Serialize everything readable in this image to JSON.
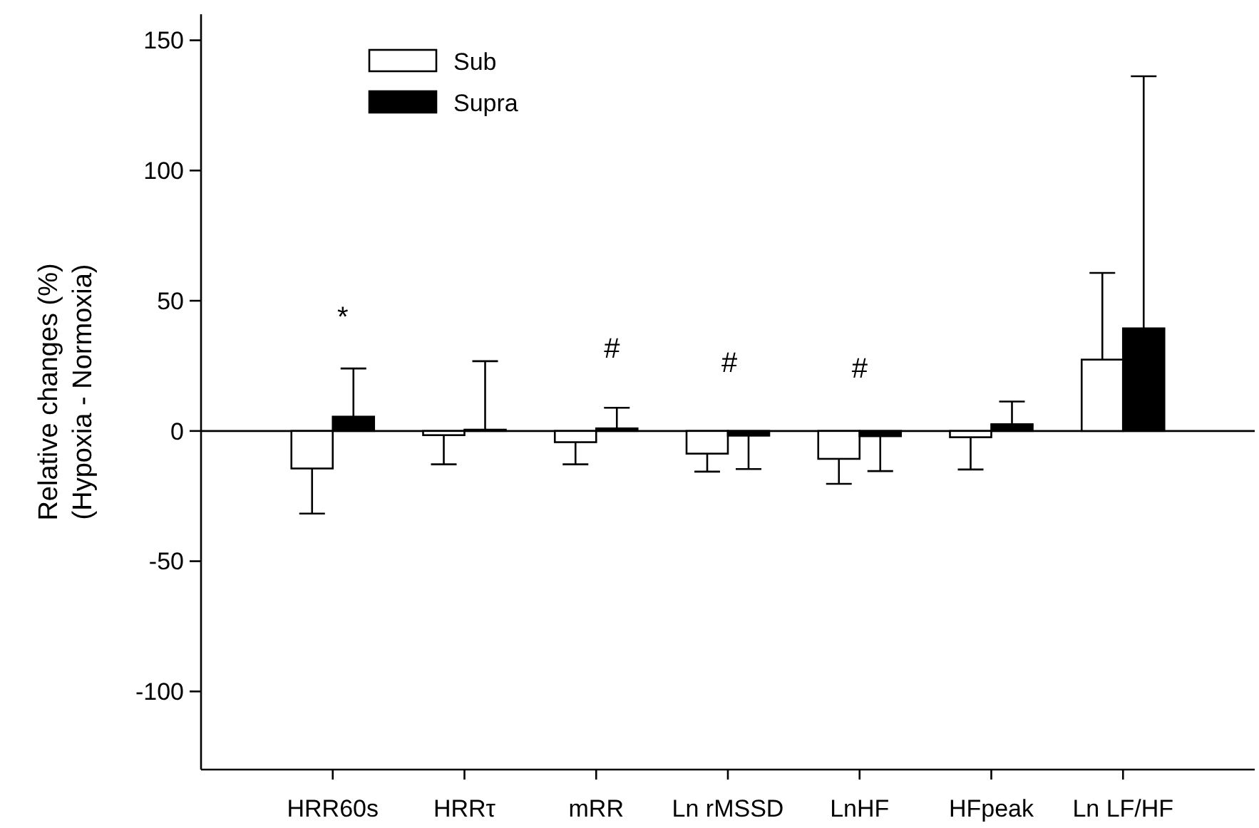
{
  "chart_data": {
    "type": "bar",
    "categories": [
      "HRR60s",
      "HRRτ",
      "mRR",
      "Ln rMSSD",
      "LnHF",
      "HFpeak",
      "Ln LF/HF"
    ],
    "series": [
      {
        "name": "Sub",
        "color": "#ffffff",
        "values": [
          -14.4,
          -1.6,
          -4.3,
          -8.7,
          -10.7,
          -2.4,
          27.4
        ],
        "errors": [
          [
            -31.7,
            -14.4
          ],
          [
            -12.8,
            -1.6
          ],
          [
            -12.8,
            -4.3
          ],
          [
            -15.6,
            -8.7
          ],
          [
            -20.3,
            -10.7
          ],
          [
            -14.8,
            -2.4
          ],
          [
            27.4,
            60.7
          ]
        ]
      },
      {
        "name": "Supra",
        "color": "#000000",
        "values": [
          5.5,
          0.5,
          1,
          -1.8,
          -2,
          2.6,
          39.4
        ],
        "errors": [
          [
            5.5,
            24
          ],
          [
            0.5,
            26.8
          ],
          [
            1,
            8.9
          ],
          [
            -14.6,
            -1.8
          ],
          [
            -15.4,
            -2
          ],
          [
            2.6,
            11.3
          ],
          [
            39.4,
            136.2
          ]
        ]
      }
    ],
    "ylabel": "Relative changes (%)\n(Hypoxia - Normoxia)",
    "ylim": [
      -130,
      160
    ],
    "yticks": [
      -100,
      -50,
      0,
      50,
      100,
      150
    ],
    "annotations": [
      "*",
      "#",
      "#",
      "#"
    ],
    "ref_lines": [
      {
        "axis": "y",
        "value": 0
      }
    ],
    "legend": "top left",
    "grid": false
  }
}
